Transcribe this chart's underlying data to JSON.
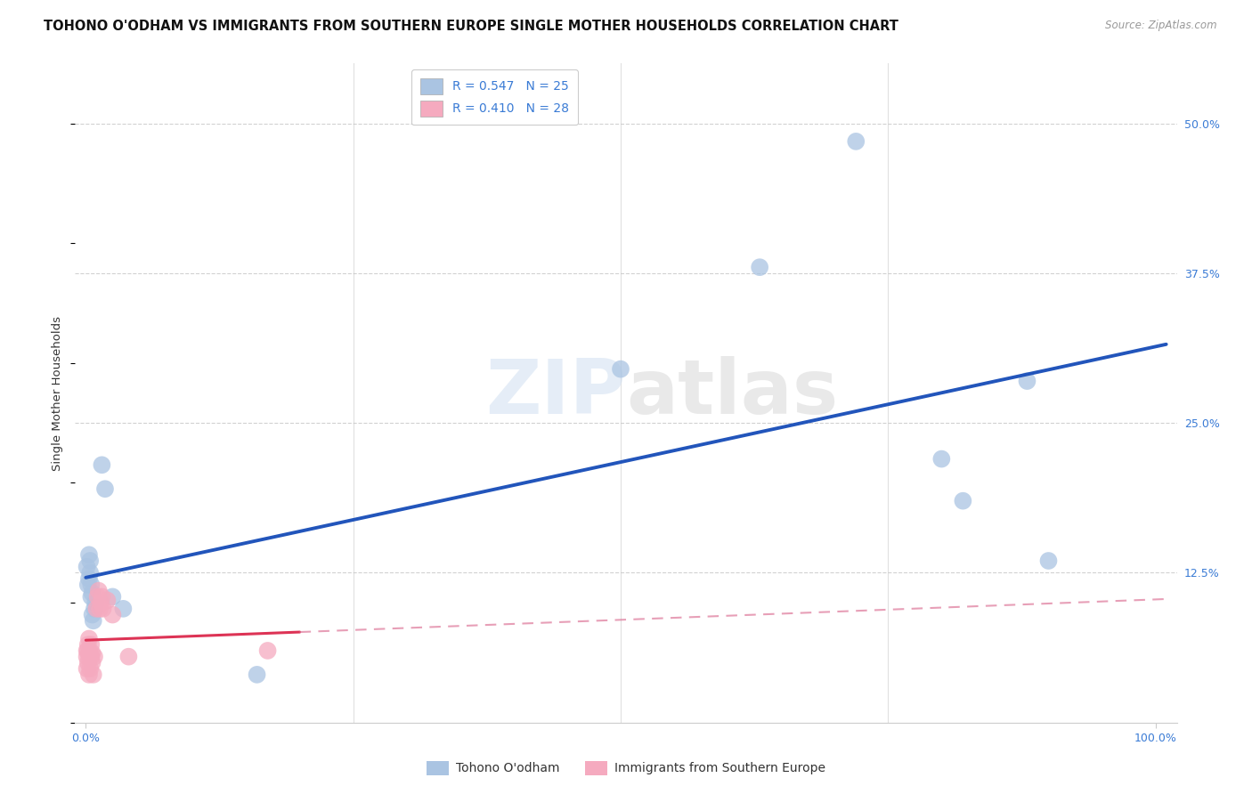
{
  "title": "TOHONO O'ODHAM VS IMMIGRANTS FROM SOUTHERN EUROPE SINGLE MOTHER HOUSEHOLDS CORRELATION CHART",
  "source": "Source: ZipAtlas.com",
  "ylabel": "Single Mother Households",
  "xlim": [
    -0.01,
    1.02
  ],
  "ylim": [
    0,
    0.55
  ],
  "ytick_labels": [
    "12.5%",
    "25.0%",
    "37.5%",
    "50.0%"
  ],
  "ytick_values": [
    0.125,
    0.25,
    0.375,
    0.5
  ],
  "xtick_positions": [
    0.0,
    1.0
  ],
  "xtick_labels": [
    "0.0%",
    "100.0%"
  ],
  "watermark": "ZIPatlas",
  "blue_R": 0.547,
  "blue_N": 25,
  "pink_R": 0.41,
  "pink_N": 28,
  "blue_color": "#aac4e2",
  "pink_color": "#f5aabf",
  "blue_line_color": "#2255bb",
  "pink_line_color": "#dd3355",
  "pink_dash_color": "#dd7799",
  "blue_scatter": [
    [
      0.001,
      0.13
    ],
    [
      0.002,
      0.115
    ],
    [
      0.003,
      0.14
    ],
    [
      0.003,
      0.12
    ],
    [
      0.004,
      0.125
    ],
    [
      0.004,
      0.135
    ],
    [
      0.005,
      0.115
    ],
    [
      0.005,
      0.105
    ],
    [
      0.006,
      0.108
    ],
    [
      0.006,
      0.09
    ],
    [
      0.007,
      0.085
    ],
    [
      0.008,
      0.095
    ],
    [
      0.009,
      0.1
    ],
    [
      0.015,
      0.215
    ],
    [
      0.018,
      0.195
    ],
    [
      0.025,
      0.105
    ],
    [
      0.035,
      0.095
    ],
    [
      0.16,
      0.04
    ],
    [
      0.5,
      0.295
    ],
    [
      0.63,
      0.38
    ],
    [
      0.72,
      0.485
    ],
    [
      0.8,
      0.22
    ],
    [
      0.82,
      0.185
    ],
    [
      0.88,
      0.285
    ],
    [
      0.9,
      0.135
    ]
  ],
  "pink_scatter": [
    [
      0.001,
      0.055
    ],
    [
      0.001,
      0.045
    ],
    [
      0.001,
      0.06
    ],
    [
      0.002,
      0.065
    ],
    [
      0.002,
      0.05
    ],
    [
      0.002,
      0.06
    ],
    [
      0.003,
      0.055
    ],
    [
      0.003,
      0.07
    ],
    [
      0.003,
      0.04
    ],
    [
      0.004,
      0.058
    ],
    [
      0.004,
      0.045
    ],
    [
      0.005,
      0.065
    ],
    [
      0.005,
      0.055
    ],
    [
      0.006,
      0.058
    ],
    [
      0.006,
      0.05
    ],
    [
      0.007,
      0.04
    ],
    [
      0.008,
      0.055
    ],
    [
      0.01,
      0.095
    ],
    [
      0.011,
      0.105
    ],
    [
      0.012,
      0.11
    ],
    [
      0.013,
      0.095
    ],
    [
      0.014,
      0.1
    ],
    [
      0.015,
      0.105
    ],
    [
      0.016,
      0.095
    ],
    [
      0.02,
      0.102
    ],
    [
      0.025,
      0.09
    ],
    [
      0.04,
      0.055
    ],
    [
      0.17,
      0.06
    ]
  ],
  "grid_color": "#cccccc",
  "background_color": "#ffffff",
  "title_fontsize": 10.5,
  "axis_label_fontsize": 9.5,
  "tick_fontsize": 9,
  "legend_fontsize": 10,
  "pink_line_xmax": 0.2,
  "blue_line_intercept": 0.125,
  "blue_line_slope": 0.145,
  "pink_line_intercept": 0.05,
  "pink_line_slope": 0.27
}
